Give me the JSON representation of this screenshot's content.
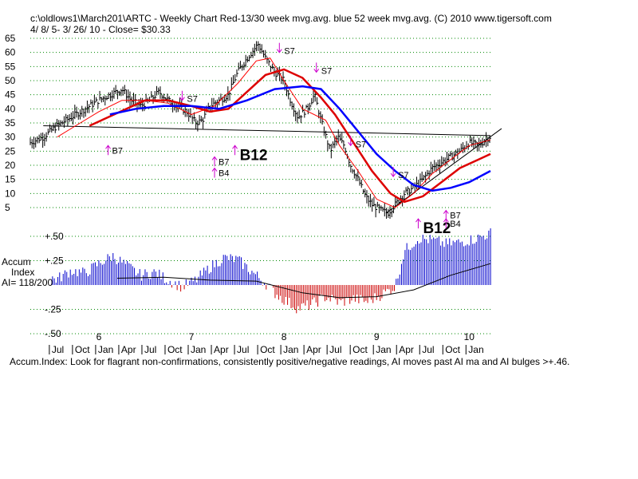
{
  "header": {
    "line1": "c:\\oldlows1\\March201\\ARTC  - Weekly Chart  Red-13/30 week mvg.avg.  blue 52 week mvg.avg.  (C) 2010 www.tigersoft.com",
    "line2": "4/ 8/ 5- 3/ 26/ 10 -     Close= $30.33"
  },
  "accum_label": {
    "l1": "Accum",
    "l2": "Index",
    "l3": "AI= 118/200"
  },
  "footer": "Accum.Index: Look for flagrant non-confirmations, consistently positive/negative readings, AI moves past AI ma and AI bulges >+.46.",
  "colors": {
    "price": "#000000",
    "ma13": "#ff0000",
    "ma30": "#cc0000",
    "ma52": "#0000ff",
    "ai_pos": "#0000cc",
    "ai_neg": "#cc0000",
    "grid": "#008800",
    "signal": "#cc00cc"
  },
  "chart_data": {
    "type": "line",
    "title": "ARTC - Weekly Chart",
    "y_ticks": [
      65,
      60,
      55,
      50,
      45,
      40,
      35,
      30,
      25,
      20,
      15,
      10,
      5
    ],
    "ylim": [
      0,
      67
    ],
    "x_range": [
      2005.26,
      2010.23
    ],
    "year_labels": [
      {
        "t": 2006.0,
        "label": "6"
      },
      {
        "t": 2007.0,
        "label": "7"
      },
      {
        "t": 2008.0,
        "label": "8"
      },
      {
        "t": 2009.0,
        "label": "9"
      },
      {
        "t": 2010.0,
        "label": "10"
      }
    ],
    "month_labels": [
      {
        "t": 2005.5,
        "label": "Jul"
      },
      {
        "t": 2005.75,
        "label": "Oct"
      },
      {
        "t": 2006.0,
        "label": "Jan"
      },
      {
        "t": 2006.25,
        "label": "Apr"
      },
      {
        "t": 2006.5,
        "label": "Jul"
      },
      {
        "t": 2006.75,
        "label": "Oct"
      },
      {
        "t": 2007.0,
        "label": "Jan"
      },
      {
        "t": 2007.25,
        "label": "Apr"
      },
      {
        "t": 2007.5,
        "label": "Jul"
      },
      {
        "t": 2007.75,
        "label": "Oct"
      },
      {
        "t": 2008.0,
        "label": "Jan"
      },
      {
        "t": 2008.25,
        "label": "Apr"
      },
      {
        "t": 2008.5,
        "label": "Jul"
      },
      {
        "t": 2008.75,
        "label": "Oct"
      },
      {
        "t": 2009.0,
        "label": "Jan"
      },
      {
        "t": 2009.25,
        "label": "Apr"
      },
      {
        "t": 2009.5,
        "label": "Jul"
      },
      {
        "t": 2009.75,
        "label": "Oct"
      },
      {
        "t": 2010.0,
        "label": "Jan"
      }
    ],
    "price_anchors": [
      [
        2005.26,
        28
      ],
      [
        2005.4,
        30
      ],
      [
        2005.55,
        34
      ],
      [
        2005.7,
        37
      ],
      [
        2005.85,
        40
      ],
      [
        2006.0,
        43
      ],
      [
        2006.12,
        45
      ],
      [
        2006.25,
        47
      ],
      [
        2006.35,
        43
      ],
      [
        2006.45,
        41
      ],
      [
        2006.55,
        43
      ],
      [
        2006.65,
        46
      ],
      [
        2006.75,
        43
      ],
      [
        2006.85,
        41
      ],
      [
        2006.95,
        39
      ],
      [
        2007.05,
        35
      ],
      [
        2007.12,
        36
      ],
      [
        2007.2,
        41
      ],
      [
        2007.3,
        43
      ],
      [
        2007.4,
        45
      ],
      [
        2007.5,
        53
      ],
      [
        2007.58,
        57
      ],
      [
        2007.65,
        60
      ],
      [
        2007.72,
        63
      ],
      [
        2007.8,
        58
      ],
      [
        2007.9,
        53
      ],
      [
        2008.0,
        50
      ],
      [
        2008.07,
        43
      ],
      [
        2008.15,
        37
      ],
      [
        2008.25,
        40
      ],
      [
        2008.33,
        45
      ],
      [
        2008.4,
        36
      ],
      [
        2008.5,
        25
      ],
      [
        2008.58,
        30
      ],
      [
        2008.65,
        27
      ],
      [
        2008.72,
        20
      ],
      [
        2008.8,
        15
      ],
      [
        2008.88,
        9
      ],
      [
        2008.95,
        6
      ],
      [
        2009.05,
        4
      ],
      [
        2009.12,
        3
      ],
      [
        2009.2,
        6
      ],
      [
        2009.3,
        10
      ],
      [
        2009.4,
        12
      ],
      [
        2009.5,
        15
      ],
      [
        2009.6,
        19
      ],
      [
        2009.7,
        21
      ],
      [
        2009.8,
        23
      ],
      [
        2009.9,
        25
      ],
      [
        2010.0,
        28
      ],
      [
        2010.1,
        27
      ],
      [
        2010.23,
        30.33
      ]
    ],
    "series": [
      {
        "name": "Red-13 week mvg.avg.",
        "color": "#ff0000",
        "points": [
          [
            2005.55,
            30
          ],
          [
            2005.75,
            34
          ],
          [
            2006.0,
            39
          ],
          [
            2006.25,
            43
          ],
          [
            2006.5,
            43
          ],
          [
            2006.75,
            42
          ],
          [
            2007.0,
            38
          ],
          [
            2007.25,
            41
          ],
          [
            2007.5,
            49
          ],
          [
            2007.7,
            57
          ],
          [
            2007.85,
            58
          ],
          [
            2008.0,
            50
          ],
          [
            2008.2,
            40
          ],
          [
            2008.45,
            36
          ],
          [
            2008.6,
            27
          ],
          [
            2008.8,
            18
          ],
          [
            2009.0,
            8
          ],
          [
            2009.2,
            5
          ],
          [
            2009.4,
            10
          ],
          [
            2009.6,
            17
          ],
          [
            2009.8,
            22
          ],
          [
            2010.0,
            27
          ],
          [
            2010.23,
            29
          ]
        ]
      },
      {
        "name": "Red-30 week mvg.avg.",
        "color": "#dd0000",
        "points": [
          [
            2005.9,
            34
          ],
          [
            2006.1,
            37
          ],
          [
            2006.3,
            40
          ],
          [
            2006.5,
            43
          ],
          [
            2006.75,
            43
          ],
          [
            2007.0,
            41
          ],
          [
            2007.2,
            39
          ],
          [
            2007.4,
            40
          ],
          [
            2007.6,
            46
          ],
          [
            2007.8,
            52
          ],
          [
            2008.0,
            54
          ],
          [
            2008.2,
            51
          ],
          [
            2008.4,
            44
          ],
          [
            2008.55,
            38
          ],
          [
            2008.75,
            28
          ],
          [
            2008.95,
            18
          ],
          [
            2009.15,
            10
          ],
          [
            2009.3,
            7
          ],
          [
            2009.5,
            9
          ],
          [
            2009.7,
            14
          ],
          [
            2009.9,
            19
          ],
          [
            2010.1,
            22
          ],
          [
            2010.23,
            24
          ]
        ]
      },
      {
        "name": "blue 52 week mvg.avg.",
        "color": "#0000ff",
        "points": [
          [
            2006.12,
            38
          ],
          [
            2006.4,
            40
          ],
          [
            2006.7,
            41
          ],
          [
            2007.0,
            41
          ],
          [
            2007.3,
            40
          ],
          [
            2007.6,
            43
          ],
          [
            2007.9,
            47
          ],
          [
            2008.2,
            48
          ],
          [
            2008.4,
            47
          ],
          [
            2008.6,
            40
          ],
          [
            2008.8,
            32
          ],
          [
            2009.0,
            24
          ],
          [
            2009.2,
            18
          ],
          [
            2009.4,
            13
          ],
          [
            2009.6,
            11
          ],
          [
            2009.8,
            12
          ],
          [
            2010.0,
            14
          ],
          [
            2010.23,
            18
          ]
        ]
      }
    ],
    "trendlines": [
      {
        "color": "#000000",
        "points": [
          [
            2005.4,
            34
          ],
          [
            2010.23,
            30.5
          ]
        ]
      },
      {
        "color": "#000000",
        "points": [
          [
            2009.1,
            3
          ],
          [
            2010.35,
            33
          ]
        ]
      }
    ],
    "signals": [
      {
        "t": 2006.1,
        "v": 27,
        "dir": "up",
        "label": "B7"
      },
      {
        "t": 2007.25,
        "v": 23,
        "dir": "up",
        "label": "B7"
      },
      {
        "t": 2007.25,
        "v": 19,
        "dir": "up",
        "label": "B4"
      },
      {
        "t": 2007.47,
        "v": 27,
        "dir": "up",
        "label": "B12",
        "big": true
      },
      {
        "t": 2006.9,
        "v": 43,
        "dir": "down",
        "label": "S7"
      },
      {
        "t": 2007.95,
        "v": 60,
        "dir": "down",
        "label": "S7"
      },
      {
        "t": 2008.35,
        "v": 53,
        "dir": "down",
        "label": "S7"
      },
      {
        "t": 2008.72,
        "v": 27,
        "dir": "down",
        "label": "S7"
      },
      {
        "t": 2009.18,
        "v": 16,
        "dir": "down",
        "label": "S7"
      },
      {
        "t": 2009.45,
        "v": 1,
        "dir": "up",
        "label": "B12",
        "big": true
      },
      {
        "t": 2009.75,
        "v": 4,
        "dir": "up",
        "label": "B7"
      },
      {
        "t": 2009.75,
        "v": 1,
        "dir": "up",
        "label": "B4"
      }
    ],
    "ai": {
      "ylim": [
        -0.55,
        0.55
      ],
      "y_ticks": [
        {
          "v": 0.5,
          "label": "+.50"
        },
        {
          "v": 0.25,
          "label": "+.25"
        },
        {
          "v": -0.25,
          "label": "-.25"
        },
        {
          "v": -0.5,
          "label": "-.50"
        }
      ],
      "anchors": [
        [
          2005.26,
          0.05
        ],
        [
          2005.4,
          0.09
        ],
        [
          2005.55,
          0.06
        ],
        [
          2005.7,
          0.15
        ],
        [
          2005.85,
          0.12
        ],
        [
          2006.0,
          0.22
        ],
        [
          2006.15,
          0.3
        ],
        [
          2006.3,
          0.2
        ],
        [
          2006.45,
          0.1
        ],
        [
          2006.6,
          0.13
        ],
        [
          2006.75,
          0.05
        ],
        [
          2006.9,
          -0.02
        ],
        [
          2007.05,
          0.05
        ],
        [
          2007.2,
          0.18
        ],
        [
          2007.35,
          0.28
        ],
        [
          2007.5,
          0.26
        ],
        [
          2007.65,
          0.14
        ],
        [
          2007.8,
          0.02
        ],
        [
          2007.9,
          -0.08
        ],
        [
          2008.0,
          -0.15
        ],
        [
          2008.15,
          -0.24
        ],
        [
          2008.3,
          -0.2
        ],
        [
          2008.45,
          -0.12
        ],
        [
          2008.6,
          -0.18
        ],
        [
          2008.75,
          -0.14
        ],
        [
          2008.9,
          -0.17
        ],
        [
          2009.05,
          -0.1
        ],
        [
          2009.2,
          -0.02
        ],
        [
          2009.3,
          0.35
        ],
        [
          2009.45,
          0.48
        ],
        [
          2009.6,
          0.46
        ],
        [
          2009.75,
          0.42
        ],
        [
          2009.9,
          0.44
        ],
        [
          2010.05,
          0.47
        ],
        [
          2010.23,
          0.53
        ]
      ],
      "ma": [
        [
          2006.2,
          0.07
        ],
        [
          2006.7,
          0.08
        ],
        [
          2007.2,
          0.05
        ],
        [
          2007.7,
          0.04
        ],
        [
          2008.2,
          -0.08
        ],
        [
          2008.6,
          -0.13
        ],
        [
          2009.0,
          -0.12
        ],
        [
          2009.4,
          -0.05
        ],
        [
          2009.8,
          0.1
        ],
        [
          2010.23,
          0.22
        ]
      ]
    }
  }
}
